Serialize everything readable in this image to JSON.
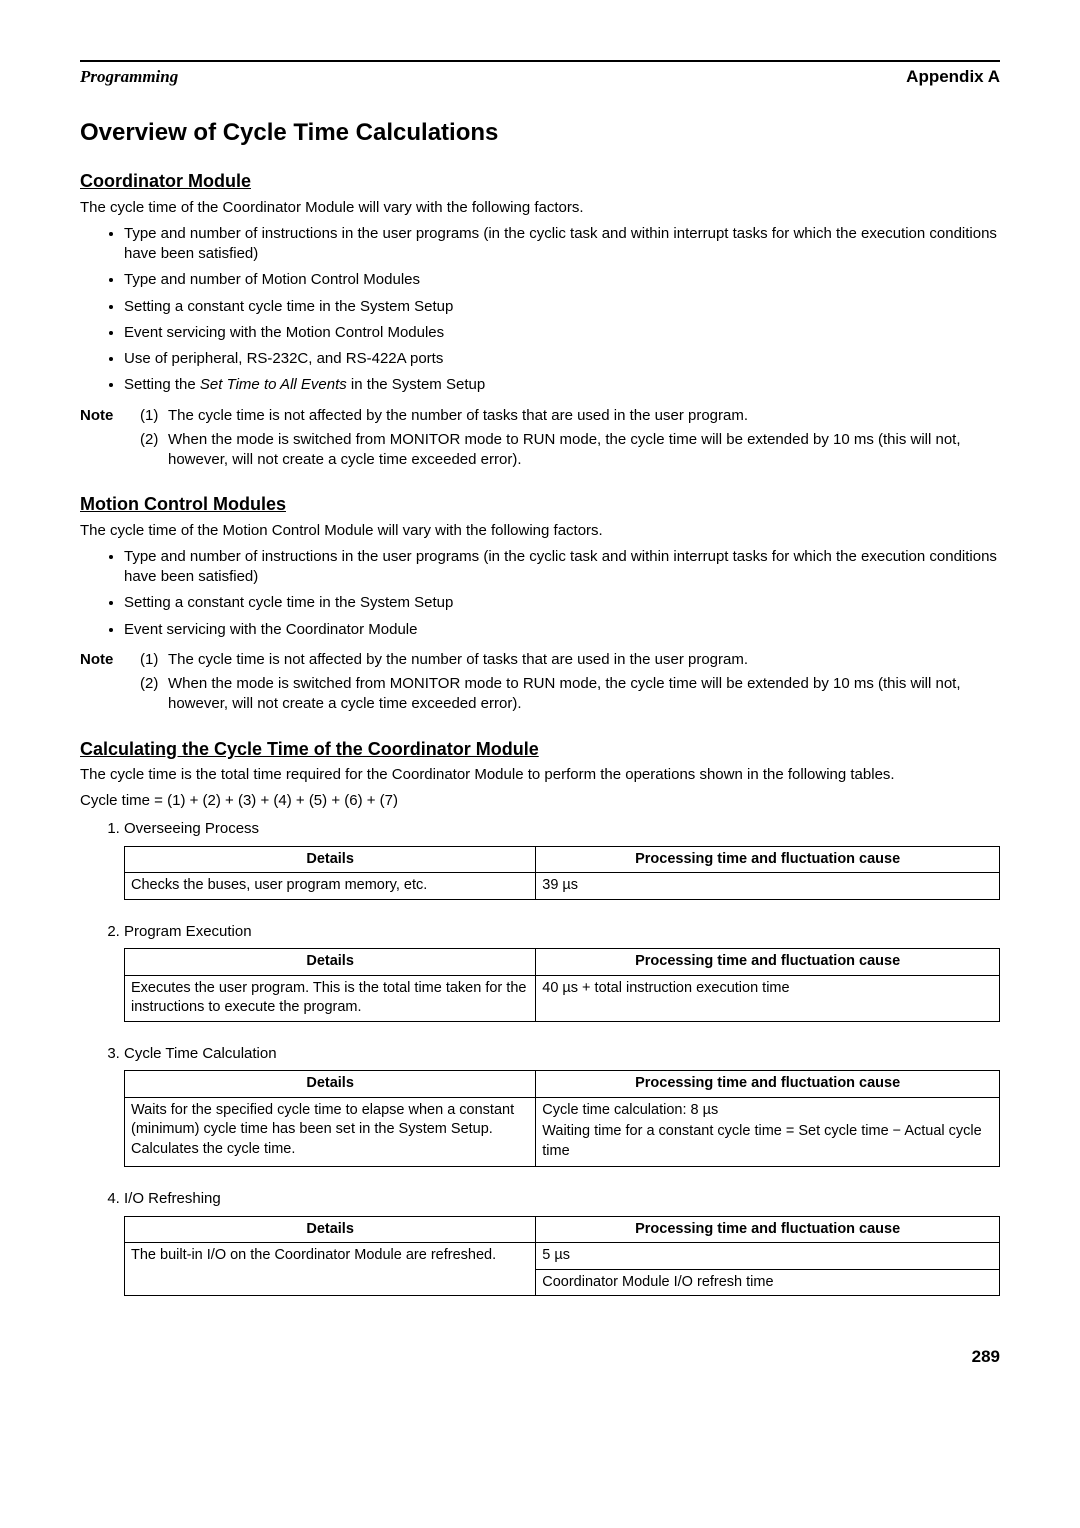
{
  "header": {
    "left": "Programming",
    "right": "Appendix A"
  },
  "title": "Overview of Cycle Time Calculations",
  "coordinator": {
    "heading": "Coordinator Module",
    "intro": "The cycle time of the Coordinator Module will vary with the following factors.",
    "bullets": [
      "Type and number of instructions in the user programs (in the cyclic task and within interrupt tasks for which the execution conditions have been satisfied)",
      "Type and number of Motion Control Modules",
      "Setting a constant cycle time in the System Setup",
      "Event servicing with the Motion Control Modules",
      "Use of peripheral, RS-232C, and RS-422A ports"
    ],
    "bullet_setting_prefix": "Setting the ",
    "bullet_setting_italic": "Set Time to All Events",
    "bullet_setting_suffix": " in the System Setup",
    "note_label": "Note",
    "notes": [
      {
        "num": "(1)",
        "text": "The cycle time is not affected by the number of tasks that are used in the user program."
      },
      {
        "num": "(2)",
        "text": "When the mode is switched from MONITOR mode to RUN mode, the cycle time will be extended by 10 ms (this will not, however, will not create a cycle time exceeded error)."
      }
    ]
  },
  "motion": {
    "heading": "Motion Control Modules",
    "intro": "The cycle time of the Motion Control Module will vary with the following factors.",
    "bullets": [
      "Type and number of instructions in the user programs (in the cyclic task and within interrupt tasks for which the execution conditions have been satisfied)",
      "Setting a constant cycle time in the System Setup",
      "Event servicing with the Coordinator Module"
    ],
    "note_label": "Note",
    "notes": [
      {
        "num": "(1)",
        "text": "The cycle time is not affected by the number of tasks that are used in the user program."
      },
      {
        "num": "(2)",
        "text": "When the mode is switched from MONITOR mode to RUN mode, the cycle time will be extended by 10 ms (this will not, however, will not create a cycle time exceeded error)."
      }
    ]
  },
  "calc": {
    "heading": "Calculating the Cycle Time of the Coordinator Module",
    "intro": "The cycle time is the total time required for the Coordinator Module to perform the operations shown in the following tables.",
    "formula": "Cycle time = (1) + (2) + (3) + (4) + (5) + (6) + (7)",
    "col_details": "Details",
    "col_proc": "Processing time and fluctuation cause",
    "steps": [
      {
        "title": "Overseeing Process",
        "details": "Checks the buses, user program memory, etc.",
        "proc": "39 µs"
      },
      {
        "title": "Program Execution",
        "details": "Executes the user program. This is the total time taken for the instructions to execute the program.",
        "proc": "40 µs + total instruction execution time"
      },
      {
        "title": "Cycle Time Calculation",
        "details": "Waits for the specified cycle time to elapse when a constant (minimum) cycle time has been set in the System Setup. Calculates the cycle time.",
        "proc_lines": [
          "Cycle time calculation: 8 µs",
          "Waiting time for a constant cycle time = Set cycle time − Actual cycle time"
        ]
      },
      {
        "title": "I/O Refreshing",
        "details": "The built-in I/O on the Coordinator Module are refreshed.",
        "proc_lines": [
          "5 µs",
          "Coordinator Module I/O refresh time"
        ],
        "proc_separate_rows": true
      }
    ]
  },
  "page_number": "289"
}
